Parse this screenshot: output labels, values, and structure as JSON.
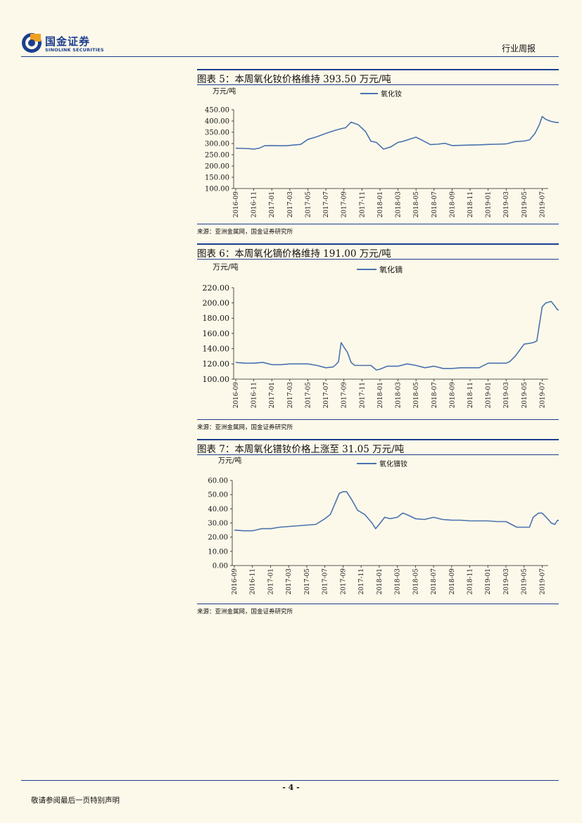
{
  "header": {
    "logo_cn": "国金证券",
    "logo_en": "SINOLINK SECURITIES",
    "report_type": "行业周报"
  },
  "figures": [
    {
      "title": "图表 5：本周氧化钕价格维持 393.50 万元/吨",
      "source": "来源：亚洲金属网，国金证券研究所",
      "chart_data": {
        "type": "line",
        "title": "",
        "ylabel": "万元/吨",
        "xlabel": "",
        "ylim": [
          100,
          450
        ],
        "yticks": [
          "100.00",
          "150.00",
          "200.00",
          "250.00",
          "300.00",
          "350.00",
          "400.00",
          "450.00"
        ],
        "ytick_values": [
          100,
          150,
          200,
          250,
          300,
          350,
          400,
          450
        ],
        "categories": [
          "2016-09",
          "2016-11",
          "2017-01",
          "2017-03",
          "2017-05",
          "2017-07",
          "2017-09",
          "2017-11",
          "2018-01",
          "2018-03",
          "2018-05",
          "2018-07",
          "2018-09",
          "2018-11",
          "2019-01",
          "2019-03",
          "2019-05",
          "2019-07"
        ],
        "legend": "top-center",
        "series": [
          {
            "name": "氧化钕",
            "color": "#4a72b0",
            "x": [
              0,
              0.4,
              0.8,
              1.0,
              1.3,
              1.6,
              2.0,
              2.4,
              2.8,
              3.2,
              3.6,
              4.0,
              4.5,
              5.0,
              5.5,
              5.9,
              6.1,
              6.4,
              6.8,
              7.2,
              7.5,
              7.8,
              8.2,
              8.6,
              9.0,
              9.3,
              9.6,
              10.0,
              10.4,
              10.8,
              11.2,
              11.6,
              12.0,
              12.5,
              13.0,
              13.5,
              14.0,
              14.5,
              15.0,
              15.5,
              16.0,
              16.3,
              16.6,
              16.85,
              17.0,
              17.2,
              17.5,
              17.8,
              18.1
            ],
            "values": [
              279,
              278,
              277,
              275,
              279,
              290,
              291,
              290,
              290,
              293,
              296,
              318,
              330,
              345,
              358,
              367,
              370,
              395,
              383,
              353,
              310,
              305,
              275,
              285,
              305,
              310,
              318,
              328,
              312,
              295,
              297,
              301,
              291,
              292,
              293,
              294,
              296,
              297,
              298,
              308,
              311,
              316,
              345,
              385,
              420,
              407,
              398,
              393,
              393.5
            ]
          }
        ]
      }
    },
    {
      "title": "图表 6：本周氧化镝价格维持 191.00 万元/吨",
      "source": "来源：亚洲金属网，国金证券研究所",
      "chart_data": {
        "type": "line",
        "title": "",
        "ylabel": "万元/吨",
        "xlabel": "",
        "ylim": [
          100,
          220
        ],
        "yticks": [
          "100.00",
          "120.00",
          "140.00",
          "160.00",
          "180.00",
          "200.00",
          "220.00"
        ],
        "ytick_values": [
          100,
          120,
          140,
          160,
          180,
          200,
          220
        ],
        "categories": [
          "2016-09",
          "2016-11",
          "2017-01",
          "2017-03",
          "2017-05",
          "2017-07",
          "2017-09",
          "2017-11",
          "2018-01",
          "2018-03",
          "2018-05",
          "2018-07",
          "2018-09",
          "2018-11",
          "2019-01",
          "2019-03",
          "2019-05",
          "2019-07"
        ],
        "legend": "top-center",
        "series": [
          {
            "name": "氧化镝",
            "color": "#4a72b0",
            "x": [
              0,
              0.5,
              1.0,
              1.5,
              2.0,
              2.5,
              3.0,
              3.5,
              4.0,
              4.5,
              5.0,
              5.4,
              5.6,
              5.7,
              5.85,
              6.0,
              6.2,
              6.4,
              6.6,
              7.0,
              7.5,
              7.8,
              8.0,
              8.4,
              9.0,
              9.5,
              10.0,
              10.5,
              11.0,
              11.5,
              12.0,
              12.5,
              13.0,
              13.5,
              14.0,
              14.5,
              15.0,
              15.2,
              15.5,
              16.0,
              16.3,
              16.5,
              16.7,
              17.0,
              17.2,
              17.5,
              17.7,
              17.85,
              18.1
            ],
            "values": [
              122,
              121,
              121,
              122,
              119,
              119,
              120,
              120,
              120,
              118,
              115,
              116,
              120,
              123,
              148,
              142,
              135,
              122,
              118,
              118,
              118,
              112,
              113,
              117,
              117,
              120,
              118,
              115,
              117,
              114,
              114,
              115,
              115,
              115,
              121,
              121,
              121,
              123,
              130,
              146,
              147,
              148,
              150,
              195,
              200,
              202,
              196,
              191,
              191
            ]
          }
        ]
      }
    },
    {
      "title": "图表 7：本周氧化镨钕价格上涨至 31.05 万元/吨",
      "source": "来源：亚洲金属网，国金证券研究所",
      "chart_data": {
        "type": "line",
        "title": "",
        "ylabel": "万元/吨",
        "xlabel": "",
        "ylim": [
          0,
          60
        ],
        "yticks": [
          "0.00",
          "10.00",
          "20.00",
          "30.00",
          "40.00",
          "50.00",
          "60.00"
        ],
        "ytick_values": [
          0,
          10,
          20,
          30,
          40,
          50,
          60
        ],
        "categories": [
          "2016-09",
          "2016-11",
          "2017-01",
          "2017-03",
          "2017-05",
          "2017-07",
          "2017-09",
          "2017-11",
          "2018-01",
          "2018-03",
          "2018-05",
          "2018-07",
          "2018-09",
          "2018-11",
          "2019-01",
          "2019-03",
          "2019-05",
          "2019-07"
        ],
        "legend": "top-center",
        "series": [
          {
            "name": "氧化镨钕",
            "color": "#4a72b0",
            "x": [
              0,
              0.5,
              1.0,
              1.5,
              2.0,
              2.5,
              3.0,
              3.5,
              4.0,
              4.5,
              5.0,
              5.3,
              5.6,
              5.8,
              6.0,
              6.2,
              6.5,
              6.8,
              7.2,
              7.6,
              7.8,
              8.0,
              8.3,
              8.6,
              9.0,
              9.3,
              9.6,
              10.0,
              10.5,
              11.0,
              11.5,
              12.0,
              12.5,
              13.0,
              13.5,
              14.0,
              14.5,
              15.0,
              15.3,
              15.6,
              16.0,
              16.3,
              16.5,
              16.8,
              17.0,
              17.3,
              17.5,
              17.7,
              17.85,
              18.1
            ],
            "values": [
              25,
              24.5,
              24.5,
              26,
              26,
              27,
              27.5,
              28,
              28.5,
              29,
              33,
              36,
              45,
              51,
              52,
              52,
              46,
              39,
              36,
              30,
              26,
              29,
              34,
              33,
              34,
              37,
              35.5,
              33,
              32.5,
              34,
              32.5,
              32,
              32,
              31.5,
              31.5,
              31.5,
              31,
              31,
              29,
              27,
              27,
              27,
              34,
              37,
              37,
              33,
              30,
              29,
              32,
              31.05
            ]
          }
        ]
      }
    }
  ],
  "footer": {
    "page_number": "- 4 -",
    "disclaimer": "敬请参阅最后一页特别声明"
  }
}
